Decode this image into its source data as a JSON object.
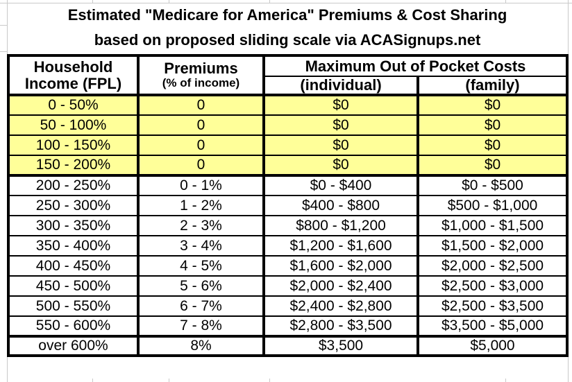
{
  "title": {
    "line1": "Estimated \"Medicare for America\" Premiums & Cost Sharing",
    "line2": "based on proposed sliding scale via ACASignups.net"
  },
  "table": {
    "headers": {
      "household_line1": "Household",
      "household_line2": "Income (FPL)",
      "premiums": "Premiums",
      "premiums_sub": "(% of income)",
      "moop": "Maximum Out of Pocket Costs",
      "individual": "(individual)",
      "family": "(family)"
    },
    "rows": [
      {
        "income": "0 - 50%",
        "premium": "0",
        "individual": "$0",
        "family": "$0",
        "highlight": true,
        "tier": "free"
      },
      {
        "income": "50 - 100%",
        "premium": "0",
        "individual": "$0",
        "family": "$0",
        "highlight": true,
        "tier": "free"
      },
      {
        "income": "100 - 150%",
        "premium": "0",
        "individual": "$0",
        "family": "$0",
        "highlight": true,
        "tier": "free"
      },
      {
        "income": "150 - 200%",
        "premium": "0",
        "individual": "$0",
        "family": "$0",
        "highlight": true,
        "tier": "free"
      },
      {
        "income": "200 - 250%",
        "premium": "0 - 1%",
        "individual": "$0 - $400",
        "family": "$0 - $500",
        "highlight": false,
        "tier": "sliding"
      },
      {
        "income": "250 - 300%",
        "premium": "1 - 2%",
        "individual": "$400 - $800",
        "family": "$500 - $1,000",
        "highlight": false,
        "tier": "sliding"
      },
      {
        "income": "300 - 350%",
        "premium": "2 - 3%",
        "individual": "$800 - $1,200",
        "family": "$1,000 - $1,500",
        "highlight": false,
        "tier": "sliding"
      },
      {
        "income": "350 - 400%",
        "premium": "3 - 4%",
        "individual": "$1,200 - $1,600",
        "family": "$1,500 - $2,000",
        "highlight": false,
        "tier": "sliding"
      },
      {
        "income": "400 - 450%",
        "premium": "4 - 5%",
        "individual": "$1,600 - $2,000",
        "family": "$2,000 - $2,500",
        "highlight": false,
        "tier": "sliding"
      },
      {
        "income": "450 - 500%",
        "premium": "5 - 6%",
        "individual": "$2,000 - $2,400",
        "family": "$2,500 - $3,000",
        "highlight": false,
        "tier": "sliding"
      },
      {
        "income": "500 - 550%",
        "premium": "6 - 7%",
        "individual": "$2,400 - $2,800",
        "family": "$2,500 - $3,500",
        "highlight": false,
        "tier": "sliding"
      },
      {
        "income": "550 - 600%",
        "premium": "7 - 8%",
        "individual": "$2,800 - $3,500",
        "family": "$3,500 - $5,000",
        "highlight": false,
        "tier": "sliding"
      },
      {
        "income": "over 600%",
        "premium": "8%",
        "individual": "$3,500",
        "family": "$5,000",
        "highlight": false,
        "tier": "cap"
      }
    ]
  },
  "chart_data": {
    "type": "table",
    "title": "Estimated \"Medicare for America\" Premiums & Cost Sharing based on proposed sliding scale via ACASignups.net",
    "columns": [
      "Household Income (FPL)",
      "Premiums (% of income)",
      "Maximum Out of Pocket Costs (individual)",
      "Maximum Out of Pocket Costs (family)"
    ],
    "rows": [
      [
        "0 - 50%",
        "0",
        "$0",
        "$0"
      ],
      [
        "50 - 100%",
        "0",
        "$0",
        "$0"
      ],
      [
        "100 - 150%",
        "0",
        "$0",
        "$0"
      ],
      [
        "150 - 200%",
        "0",
        "$0",
        "$0"
      ],
      [
        "200 - 250%",
        "0 - 1%",
        "$0 - $400",
        "$0 - $500"
      ],
      [
        "250 - 300%",
        "1 - 2%",
        "$400 - $800",
        "$500 - $1,000"
      ],
      [
        "300 - 350%",
        "2 - 3%",
        "$800 - $1,200",
        "$1,000 - $1,500"
      ],
      [
        "350 - 400%",
        "3 - 4%",
        "$1,200 - $1,600",
        "$1,500 - $2,000"
      ],
      [
        "400 - 450%",
        "4 - 5%",
        "$1,600 - $2,000",
        "$2,000 - $2,500"
      ],
      [
        "450 - 500%",
        "5 - 6%",
        "$2,000 - $2,400",
        "$2,500 - $3,000"
      ],
      [
        "500 - 550%",
        "6 - 7%",
        "$2,400 - $2,800",
        "$2,500 - $3,500"
      ],
      [
        "550 - 600%",
        "7 - 8%",
        "$2,800 - $3,500",
        "$3,500 - $5,000"
      ],
      [
        "over 600%",
        "8%",
        "$3,500",
        "$5,000"
      ]
    ],
    "highlighted_rows": [
      0,
      1,
      2,
      3
    ],
    "highlight_color": "#FFFF99"
  },
  "colors": {
    "highlight": "#FFFF99",
    "border": "#000000",
    "gridline": "#C9C9C9",
    "background": "#FFFFFF"
  }
}
